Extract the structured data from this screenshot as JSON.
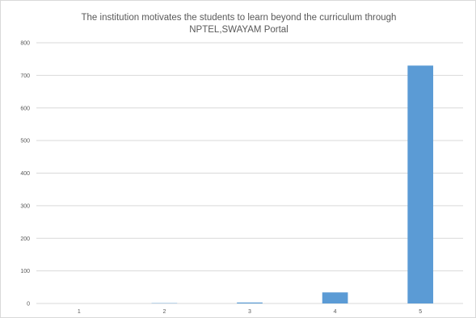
{
  "chart_data": {
    "type": "bar",
    "title_lines": [
      "The institution motivates the students to learn beyond the curriculum through",
      "NPTEL,SWAYAM Portal"
    ],
    "xlabel": "",
    "ylabel": "",
    "categories": [
      "1",
      "2",
      "3",
      "4",
      "5"
    ],
    "values": [
      0,
      1,
      3,
      34,
      730
    ],
    "ylim": [
      0,
      800
    ],
    "yticks": [
      0,
      100,
      200,
      300,
      400,
      500,
      600,
      700,
      800
    ],
    "yticks_labels": [
      "0",
      "100",
      "200",
      "300",
      "400",
      "500",
      "600",
      "700",
      "800"
    ],
    "grid": true,
    "legend": "none",
    "bar_color": "#5b9bd5",
    "grid_color": "#d9d9d9"
  }
}
